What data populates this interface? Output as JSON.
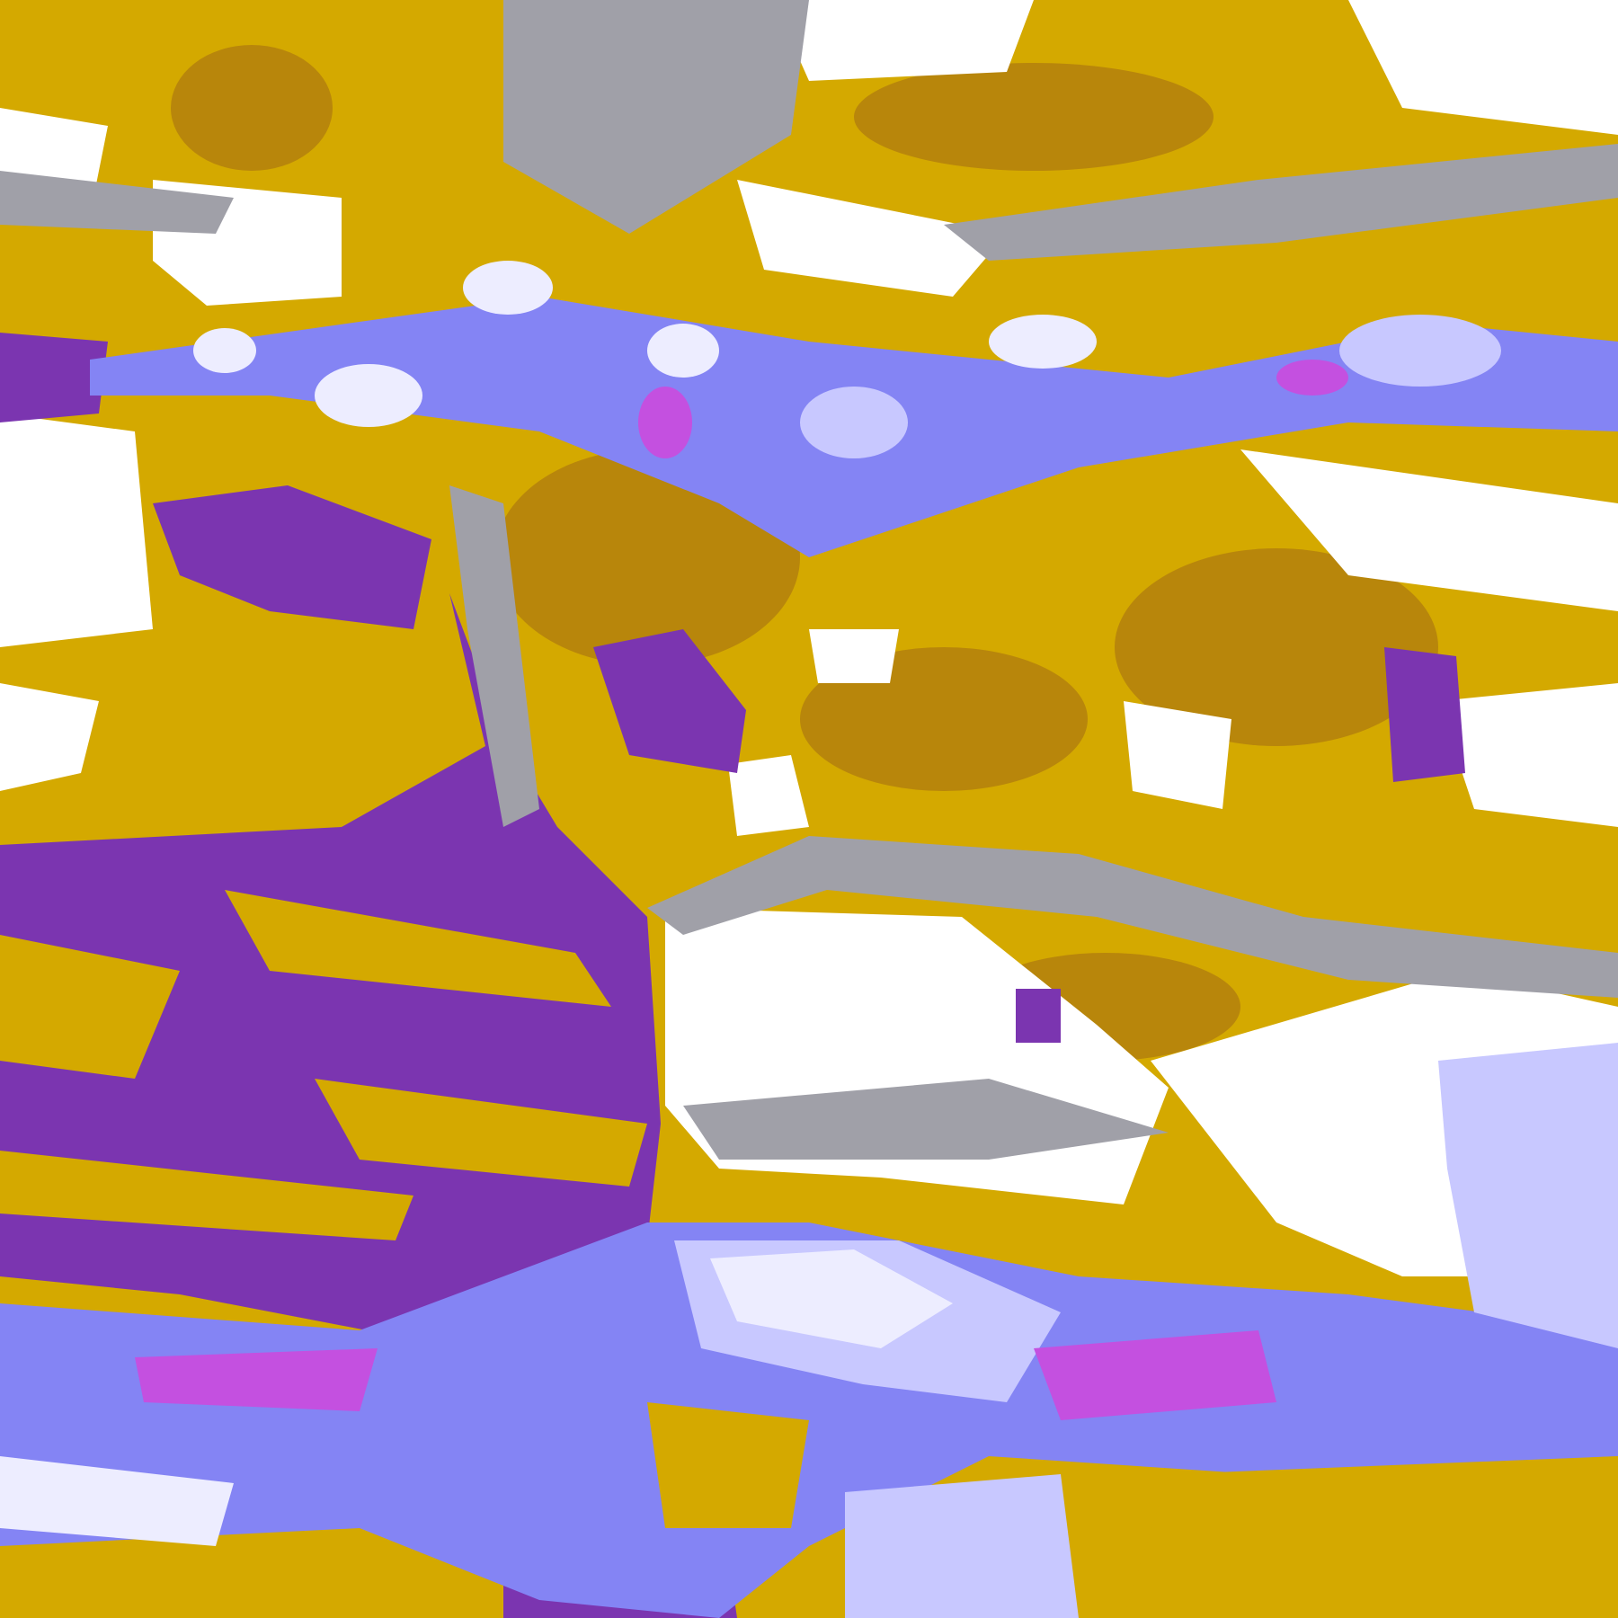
{
  "image": {
    "kind": "false-color classified satellite imagery",
    "palette": {
      "gold": "#d4a900",
      "dark_gold": "#b8860b",
      "purple": "#7b35b0",
      "magenta": "#c450e0",
      "lavender": "#c8c8ff",
      "periwinkle": "#8484f4",
      "gray": "#a0a0a8",
      "white": "#ffffff",
      "pale_lavender": "#ededff"
    }
  }
}
